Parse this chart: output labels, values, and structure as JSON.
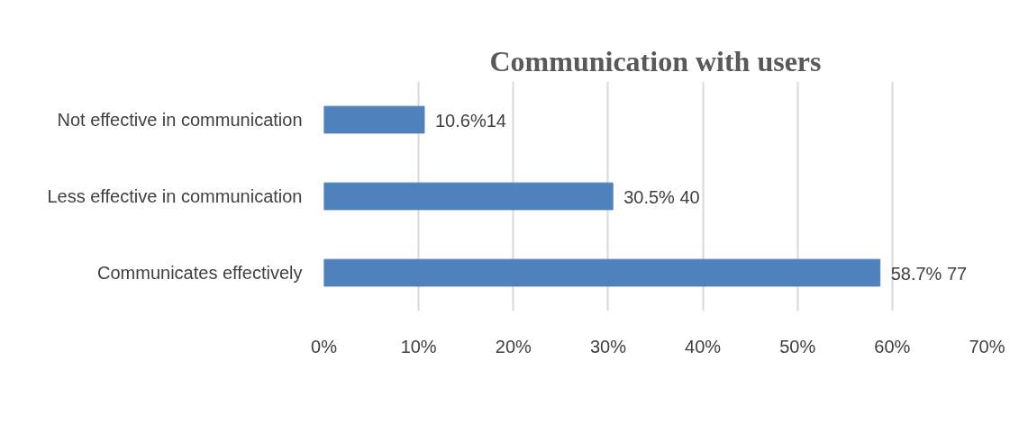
{
  "chart_data": {
    "type": "bar",
    "orientation": "horizontal",
    "title": "Communication with users",
    "categories": [
      "Not effective in communication",
      "Less effective in communication",
      "Communicates effectively"
    ],
    "values": [
      10.6,
      30.5,
      58.7
    ],
    "color": "#4f81bd",
    "value_labels": [
      "10.6%14",
      "30.5% 40",
      "58.7% 77"
    ],
    "xlim": [
      0,
      70
    ],
    "xticks": [
      {
        "value": 0,
        "label": "0%"
      },
      {
        "value": 10,
        "label": "10%"
      },
      {
        "value": 20,
        "label": "20%"
      },
      {
        "value": 30,
        "label": "30%"
      },
      {
        "value": 40,
        "label": "40%"
      },
      {
        "value": 50,
        "label": "50%"
      },
      {
        "value": 60,
        "label": "60%"
      },
      {
        "value": 70,
        "label": "70%"
      }
    ],
    "grid": "x"
  }
}
